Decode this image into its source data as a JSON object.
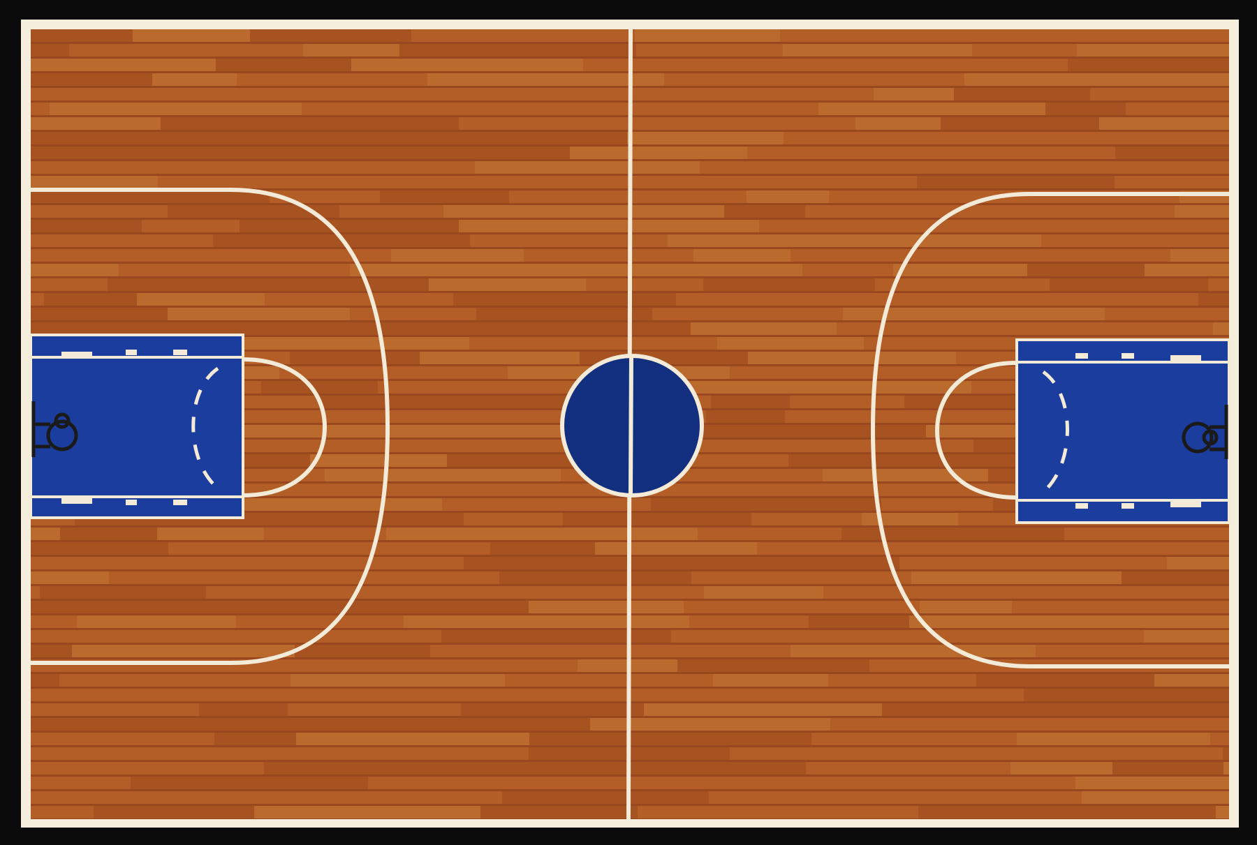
{
  "rug": {
    "colors": {
      "border": "#0b0b0b",
      "edge_line": "#f6eedc",
      "court_lines": "#f3ead8",
      "wood": "#b35e26",
      "wood_dark": "#8e3f1b",
      "wood_light": "#c27a36",
      "paint": "#1b3d9e",
      "paint_dark": "#12307f",
      "hoop": "#1a1a1a"
    },
    "icons": {
      "left_hoop": "basketball-hoop-icon",
      "right_hoop": "basketball-hoop-icon"
    }
  }
}
